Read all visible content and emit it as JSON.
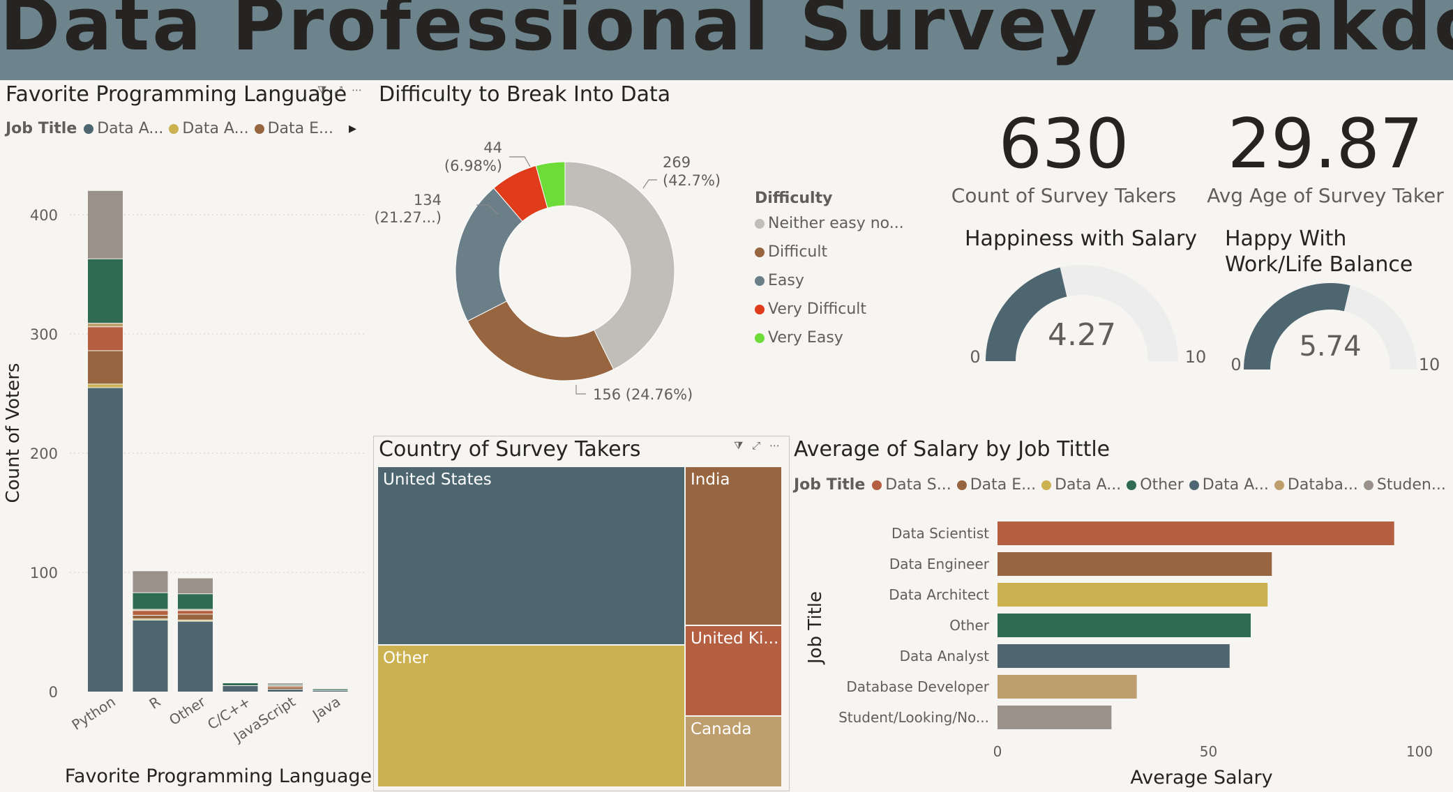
{
  "dashboard": {
    "title": "Data Professional Survey Breakdown"
  },
  "colors": {
    "slate": "#4e6670",
    "gold": "#ccb150",
    "brown": "#976540",
    "green": "#2f6a52",
    "rust": "#b55f42",
    "tan": "#bf9e6e",
    "taupe": "#9b918b",
    "donut_neither": "#c1bdb8",
    "donut_easy": "#6b7f89",
    "donut_very_difficult": "#e03b1b",
    "donut_very_easy": "#6ddc38",
    "gauge_fill": "#4e6670",
    "gauge_track": "#ededed"
  },
  "visual_icons": [
    "filter-icon",
    "focus-mode-icon",
    "more-options-icon"
  ],
  "lang_chart": {
    "title": "Favorite Programming Language",
    "legend_title": "Job Title",
    "legend_items": [
      {
        "label": "Data A...",
        "color": "#4e6670"
      },
      {
        "label": "Data A...",
        "color": "#ccb150"
      },
      {
        "label": "Data E...",
        "color": "#976540"
      }
    ],
    "legend_arrow": "▸"
  },
  "difficulty_chart": {
    "title": "Difficulty to Break Into Data",
    "legend_title": "Difficulty",
    "legend_items": [
      {
        "label": "Neither easy no...",
        "color": "#c1bdb8"
      },
      {
        "label": "Difficult",
        "color": "#976540"
      },
      {
        "label": "Easy",
        "color": "#6b7f89"
      },
      {
        "label": "Very Difficult",
        "color": "#e03b1b"
      },
      {
        "label": "Very Easy",
        "color": "#6ddc38"
      }
    ],
    "data_labels": [
      {
        "line1": "269",
        "line2": "(42.7%)"
      },
      {
        "line1": "156 (24.76%)",
        "line2": ""
      },
      {
        "line1": "134",
        "line2": "(21.27...)"
      },
      {
        "line1": "44",
        "line2": "(6.98%)"
      }
    ]
  },
  "kpis": {
    "count": {
      "value": "630",
      "label": "Count of Survey Takers"
    },
    "age": {
      "value": "29.87",
      "label": "Avg Age of Survey Taker"
    }
  },
  "gauges": {
    "salary": {
      "title": "Happiness with Salary",
      "value_label": "4.27",
      "min_label": "0",
      "max_label": "10"
    },
    "worklife": {
      "title": "Happy With\nWork/Life Balance",
      "value_label": "5.74",
      "min_label": "0",
      "max_label": "10"
    }
  },
  "treemap": {
    "title": "Country of Survey Takers"
  },
  "salary_chart": {
    "title": "Average of Salary by Job Tittle",
    "legend_title": "Job Title",
    "legend_items": [
      {
        "label": "Data S...",
        "color": "#b55f42"
      },
      {
        "label": "Data E...",
        "color": "#976540"
      },
      {
        "label": "Data A...",
        "color": "#ccb150"
      },
      {
        "label": "Other",
        "color": "#2f6a52"
      },
      {
        "label": "Data A...",
        "color": "#4e6670"
      },
      {
        "label": "Databa...",
        "color": "#bf9e6e"
      },
      {
        "label": "Studen...",
        "color": "#9b918b"
      }
    ]
  },
  "chart_data": [
    {
      "type": "bar",
      "stacked": true,
      "title": "Favorite Programming Language",
      "xlabel": "Favorite Programming Language",
      "ylabel": "Count of Voters",
      "categories": [
        "Python",
        "R",
        "Other",
        "C/C++",
        "JavaScript",
        "Java"
      ],
      "ylim": [
        0,
        420
      ],
      "yticks": [
        0,
        100,
        200,
        300,
        400
      ],
      "grid": true,
      "legend_position": "top",
      "series": [
        {
          "color": "#4e6670",
          "values": [
            255,
            60,
            59,
            5,
            2,
            1
          ]
        },
        {
          "color": "#ccb150",
          "values": [
            3,
            1,
            1,
            0,
            0,
            0
          ]
        },
        {
          "color": "#976540",
          "values": [
            28,
            3,
            5,
            0,
            2,
            0
          ]
        },
        {
          "color": "#b55f42",
          "values": [
            20,
            4,
            3,
            0,
            1,
            0
          ]
        },
        {
          "color": "#bf9e6e",
          "values": [
            3,
            1,
            1,
            0,
            0,
            0
          ]
        },
        {
          "color": "#2f6a52",
          "values": [
            54,
            14,
            13,
            2,
            1,
            1
          ]
        },
        {
          "color": "#9b918b",
          "values": [
            57,
            18,
            13,
            0,
            1,
            0
          ]
        }
      ]
    },
    {
      "type": "pie",
      "donut": true,
      "title": "Difficulty to Break Into Data",
      "categories": [
        "Neither easy nor difficult",
        "Difficult",
        "Easy",
        "Very Difficult",
        "Very Easy"
      ],
      "values": [
        269,
        156,
        134,
        44,
        27
      ],
      "colors": [
        "#c1bdb8",
        "#976540",
        "#6b7f89",
        "#e03b1b",
        "#6ddc38"
      ],
      "legend_position": "right"
    },
    {
      "type": "treemap",
      "title": "Country of Survey Takers",
      "items": [
        {
          "label": "United States",
          "value": 262,
          "color": "#4e6670"
        },
        {
          "label": "Other",
          "value": 209,
          "color": "#ccb150"
        },
        {
          "label": "India",
          "value": 74,
          "color": "#976540"
        },
        {
          "label": "United Ki...",
          "value": 42,
          "color": "#b55f42"
        },
        {
          "label": "Canada",
          "value": 33,
          "color": "#bf9e6e"
        }
      ]
    },
    {
      "type": "bar",
      "orientation": "horizontal",
      "title": "Average of Salary by Job Tittle",
      "xlabel": "Average Salary",
      "ylabel": "Job Title",
      "categories": [
        "Data Scientist",
        "Data Engineer",
        "Data Architect",
        "Other",
        "Data Analyst",
        "Database Developer",
        "Student/Looking/No..."
      ],
      "values": [
        94,
        65,
        64,
        60,
        55,
        33,
        27
      ],
      "colors": [
        "#b55f42",
        "#976540",
        "#ccb150",
        "#2f6a52",
        "#4e6670",
        "#bf9e6e",
        "#9b918b"
      ],
      "xlim": [
        0,
        100
      ],
      "xticks": [
        0,
        50,
        100
      ],
      "legend_position": "top"
    }
  ]
}
